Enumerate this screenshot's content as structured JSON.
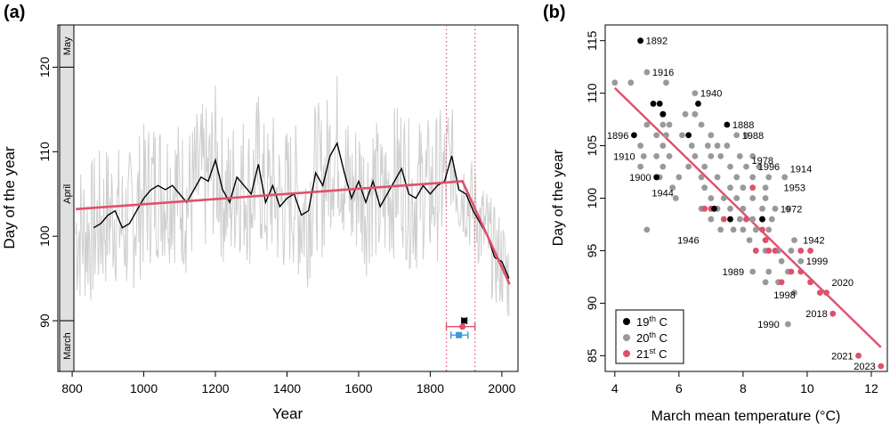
{
  "panels": {
    "a": {
      "label": "(a)"
    },
    "b": {
      "label": "(b)"
    }
  },
  "chart_data": [
    {
      "type": "line",
      "panel": "(a)",
      "xlabel": "Year",
      "ylabel": "Day of the year",
      "xlim": [
        760,
        2045
      ],
      "ylim": [
        84,
        125
      ],
      "xticks": [
        800,
        1000,
        1200,
        1400,
        1600,
        1800,
        2000
      ],
      "yticks": [
        90,
        100,
        110,
        120
      ],
      "month_bands": [
        {
          "label": "May",
          "from": 120,
          "to": 125
        },
        {
          "label": "April",
          "from": 90,
          "to": 120
        },
        {
          "label": "March",
          "from": 84,
          "to": 90
        }
      ],
      "vertical_lines": [
        1845,
        1925
      ],
      "smoothed_series": {
        "x": [
          860,
          880,
          900,
          920,
          940,
          960,
          980,
          1000,
          1020,
          1040,
          1060,
          1080,
          1100,
          1120,
          1140,
          1160,
          1180,
          1200,
          1220,
          1240,
          1260,
          1280,
          1300,
          1320,
          1340,
          1360,
          1380,
          1400,
          1420,
          1440,
          1460,
          1480,
          1500,
          1520,
          1540,
          1560,
          1580,
          1600,
          1620,
          1640,
          1660,
          1680,
          1700,
          1720,
          1740,
          1760,
          1780,
          1800,
          1820,
          1840,
          1860,
          1880,
          1900,
          1920,
          1940,
          1960,
          1980,
          2000,
          2020
        ],
        "y": [
          101.0,
          101.5,
          102.5,
          103.0,
          101.0,
          101.5,
          103.0,
          104.5,
          105.5,
          106.0,
          105.5,
          106.0,
          105.0,
          104.0,
          105.5,
          107.0,
          106.5,
          109.0,
          105.5,
          104.0,
          107.0,
          106.0,
          105.0,
          108.5,
          104.0,
          106.0,
          103.5,
          104.5,
          105.0,
          102.5,
          103.0,
          107.5,
          106.0,
          109.5,
          111.0,
          107.5,
          104.5,
          106.5,
          104.0,
          106.5,
          103.5,
          105.0,
          106.5,
          108.0,
          105.0,
          104.5,
          106.0,
          105.0,
          106.0,
          106.5,
          109.5,
          105.5,
          105.0,
          103.0,
          101.5,
          100.0,
          97.5,
          97.0,
          95.0
        ]
      },
      "trend_line": {
        "x": [
          810,
          1890,
          2022
        ],
        "y": [
          103.2,
          106.5,
          94.3
        ]
      },
      "breakpoints": [
        {
          "label": "19th C",
          "x": 1895,
          "xerr": [
            1888,
            1902
          ],
          "y": 90
        },
        {
          "label": "",
          "x": 1880,
          "xerr": [
            1858,
            1905
          ],
          "y": 88.3
        },
        {
          "label": "",
          "x": 1890,
          "xerr": [
            1845,
            1925
          ],
          "y": 89.3
        }
      ]
    },
    {
      "type": "scatter",
      "panel": "(b)",
      "xlabel": "March mean temperature (°C)",
      "ylabel": "Day of the year",
      "xlim": [
        3.7,
        12.5
      ],
      "ylim": [
        83.5,
        116.5
      ],
      "xticks": [
        4,
        6,
        8,
        10,
        12
      ],
      "yticks": [
        85,
        90,
        95,
        100,
        105,
        110,
        115
      ],
      "legend": {
        "placement": "bottom-left",
        "entries": [
          {
            "base": "19",
            "sup": "th",
            "suffix": " C",
            "color": "#000000"
          },
          {
            "base": "20",
            "sup": "th",
            "suffix": " C",
            "color": "#999999"
          },
          {
            "base": "21",
            "sup": "st",
            "suffix": " C",
            "color": "#e0506a"
          }
        ]
      },
      "regression_line": {
        "x": [
          4.0,
          12.3
        ],
        "y": [
          110.5,
          85.8
        ]
      },
      "series": [
        {
          "name": "19th C",
          "color": "#000000",
          "points": [
            [
              4.8,
              115
            ],
            [
              5.2,
              109
            ],
            [
              5.4,
              109
            ],
            [
              5.5,
              108
            ],
            [
              5.5,
              108
            ],
            [
              6.6,
              109
            ],
            [
              7.5,
              107
            ],
            [
              4.6,
              106
            ],
            [
              6.3,
              106
            ],
            [
              5.3,
              102
            ],
            [
              7.1,
              99
            ],
            [
              7.6,
              98
            ],
            [
              8.6,
              98
            ]
          ],
          "labels": [
            {
              "text": "1892",
              "x": 4.8,
              "y": 115,
              "pos": "right"
            },
            {
              "text": "1888",
              "x": 7.5,
              "y": 107,
              "pos": "right"
            },
            {
              "text": "1896",
              "x": 4.6,
              "y": 106,
              "pos": "left"
            },
            {
              "text": "1900",
              "x": 5.3,
              "y": 102,
              "pos": "left"
            }
          ]
        },
        {
          "name": "20th C",
          "color": "#999999",
          "points": [
            [
              4.0,
              111
            ],
            [
              4.5,
              111
            ],
            [
              5.0,
              112
            ],
            [
              5.6,
              111
            ],
            [
              6.5,
              110
            ],
            [
              6.2,
              108
            ],
            [
              6.5,
              108
            ],
            [
              5.0,
              107
            ],
            [
              5.5,
              107
            ],
            [
              5.7,
              107
            ],
            [
              6.7,
              107
            ],
            [
              5.3,
              106
            ],
            [
              5.6,
              106
            ],
            [
              6.1,
              106
            ],
            [
              7.0,
              106
            ],
            [
              4.8,
              105
            ],
            [
              5.5,
              105
            ],
            [
              6.4,
              105
            ],
            [
              6.9,
              105
            ],
            [
              7.2,
              105
            ],
            [
              7.5,
              105
            ],
            [
              7.8,
              106
            ],
            [
              8.1,
              106
            ],
            [
              4.9,
              104
            ],
            [
              5.3,
              104
            ],
            [
              5.7,
              104
            ],
            [
              6.5,
              104
            ],
            [
              7.0,
              104
            ],
            [
              7.3,
              104
            ],
            [
              7.9,
              104
            ],
            [
              8.3,
              104
            ],
            [
              4.8,
              103
            ],
            [
              5.5,
              103
            ],
            [
              6.3,
              103
            ],
            [
              6.8,
              103
            ],
            [
              7.6,
              103
            ],
            [
              8.1,
              103
            ],
            [
              8.5,
              103
            ],
            [
              5.4,
              102
            ],
            [
              6.0,
              102
            ],
            [
              6.7,
              102
            ],
            [
              7.2,
              102
            ],
            [
              7.8,
              102
            ],
            [
              8.3,
              102
            ],
            [
              8.8,
              102
            ],
            [
              9.3,
              102
            ],
            [
              5.8,
              101
            ],
            [
              6.8,
              101
            ],
            [
              7.6,
              101
            ],
            [
              8.0,
              101
            ],
            [
              8.7,
              101
            ],
            [
              5.9,
              100
            ],
            [
              7.0,
              100
            ],
            [
              7.4,
              100
            ],
            [
              7.8,
              100
            ],
            [
              8.3,
              100
            ],
            [
              8.7,
              100
            ],
            [
              6.7,
              99
            ],
            [
              7.2,
              99
            ],
            [
              7.6,
              99
            ],
            [
              8.0,
              99
            ],
            [
              8.6,
              99
            ],
            [
              9.0,
              99
            ],
            [
              9.4,
              99
            ],
            [
              7.0,
              98
            ],
            [
              7.9,
              98
            ],
            [
              8.3,
              98
            ],
            [
              8.9,
              98
            ],
            [
              7.3,
              97
            ],
            [
              7.7,
              97
            ],
            [
              8.0,
              97
            ],
            [
              8.4,
              97
            ],
            [
              8.8,
              97
            ],
            [
              5.0,
              97
            ],
            [
              9.6,
              96
            ],
            [
              8.2,
              96
            ],
            [
              8.7,
              96
            ],
            [
              9.1,
              95
            ],
            [
              9.5,
              95
            ],
            [
              8.7,
              95
            ],
            [
              9.2,
              94
            ],
            [
              9.8,
              94
            ],
            [
              8.3,
              93
            ],
            [
              8.8,
              93
            ],
            [
              9.4,
              93
            ],
            [
              9.1,
              92
            ],
            [
              8.7,
              92
            ],
            [
              9.6,
              91
            ],
            [
              9.4,
              88
            ]
          ],
          "labels": [
            {
              "text": "1916",
              "x": 5.0,
              "y": 112,
              "pos": "right"
            },
            {
              "text": "1940",
              "x": 6.5,
              "y": 110,
              "pos": "right"
            },
            {
              "text": "1988",
              "x": 7.8,
              "y": 106,
              "pos": "right"
            },
            {
              "text": "1978",
              "x": 8.1,
              "y": 103.6,
              "pos": "right"
            },
            {
              "text": "1996",
              "x": 8.3,
              "y": 103,
              "pos": "right"
            },
            {
              "text": "1914",
              "x": 9.3,
              "y": 102.8,
              "pos": "right"
            },
            {
              "text": "1910",
              "x": 4.8,
              "y": 104,
              "pos": "left"
            },
            {
              "text": "1944",
              "x": 6.0,
              "y": 100.5,
              "pos": "left"
            },
            {
              "text": "1953",
              "x": 9.1,
              "y": 101,
              "pos": "right"
            },
            {
              "text": "1972",
              "x": 9.0,
              "y": 99,
              "pos": "right"
            },
            {
              "text": "1946",
              "x": 6.8,
              "y": 96,
              "pos": "left"
            },
            {
              "text": "1942",
              "x": 9.7,
              "y": 96,
              "pos": "right"
            },
            {
              "text": "1999",
              "x": 9.8,
              "y": 94,
              "pos": "right"
            },
            {
              "text": "1989",
              "x": 8.2,
              "y": 93,
              "pos": "left"
            },
            {
              "text": "1998",
              "x": 9.8,
              "y": 90.8,
              "pos": "left"
            },
            {
              "text": "1990",
              "x": 9.3,
              "y": 88,
              "pos": "left"
            }
          ]
        },
        {
          "name": "21st C",
          "color": "#e0506a",
          "points": [
            [
              8.3,
              101
            ],
            [
              6.8,
              99
            ],
            [
              7.0,
              99
            ],
            [
              7.4,
              98
            ],
            [
              8.1,
              98
            ],
            [
              8.6,
              97
            ],
            [
              8.7,
              96
            ],
            [
              8.4,
              95
            ],
            [
              8.8,
              95
            ],
            [
              9.0,
              95
            ],
            [
              9.8,
              95
            ],
            [
              10.1,
              95
            ],
            [
              9.5,
              93
            ],
            [
              9.8,
              93
            ],
            [
              9.2,
              92
            ],
            [
              10.1,
              92
            ],
            [
              10.4,
              91
            ],
            [
              10.6,
              91
            ],
            [
              10.8,
              89
            ],
            [
              11.6,
              85
            ],
            [
              12.3,
              84
            ],
            [
              8.6,
              98
            ]
          ],
          "labels": [
            {
              "text": "2020",
              "x": 10.6,
              "y": 92,
              "pos": "right"
            },
            {
              "text": "2018",
              "x": 10.8,
              "y": 89,
              "pos": "left"
            },
            {
              "text": "2021",
              "x": 11.6,
              "y": 85,
              "pos": "left"
            },
            {
              "text": "2023",
              "x": 12.3,
              "y": 84,
              "pos": "left"
            }
          ]
        }
      ]
    }
  ]
}
